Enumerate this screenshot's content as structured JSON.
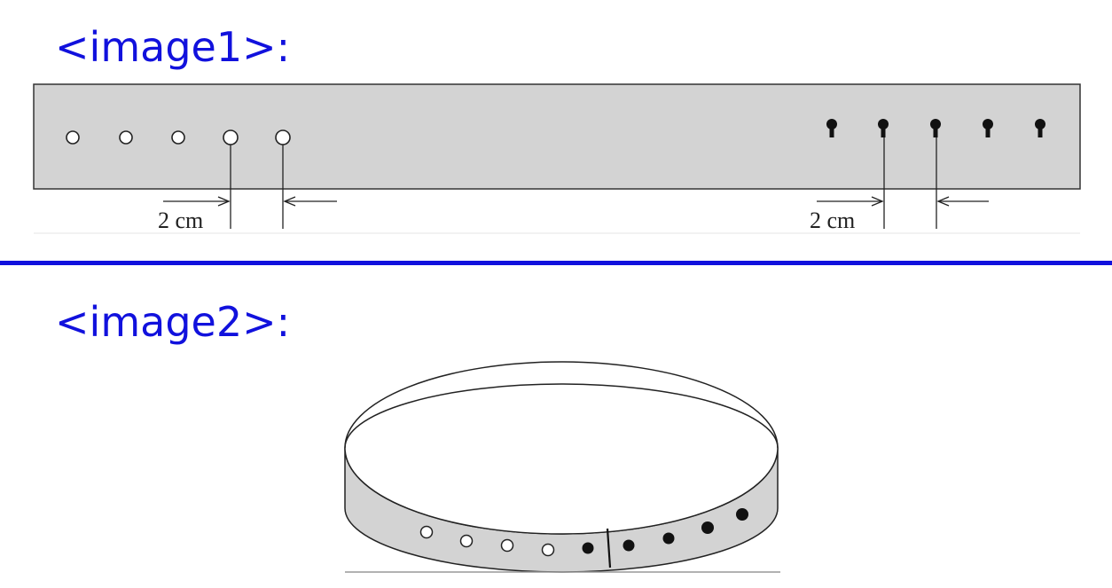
{
  "labels": {
    "image1": "<image1>:",
    "image2": "<image2>:"
  },
  "strap": {
    "fill_color": "#d3d3d3",
    "outline_color": "#333333",
    "open_hole_count": 5,
    "keyhole_count": 5,
    "left_dimension": "2 cm",
    "right_dimension": "2 cm"
  },
  "belt": {
    "fill_color": "#d3d3d3",
    "open_hole_count": 4,
    "filled_hole_count": 5
  },
  "colors": {
    "label": "#1111dd",
    "divider": "#1111dd"
  }
}
